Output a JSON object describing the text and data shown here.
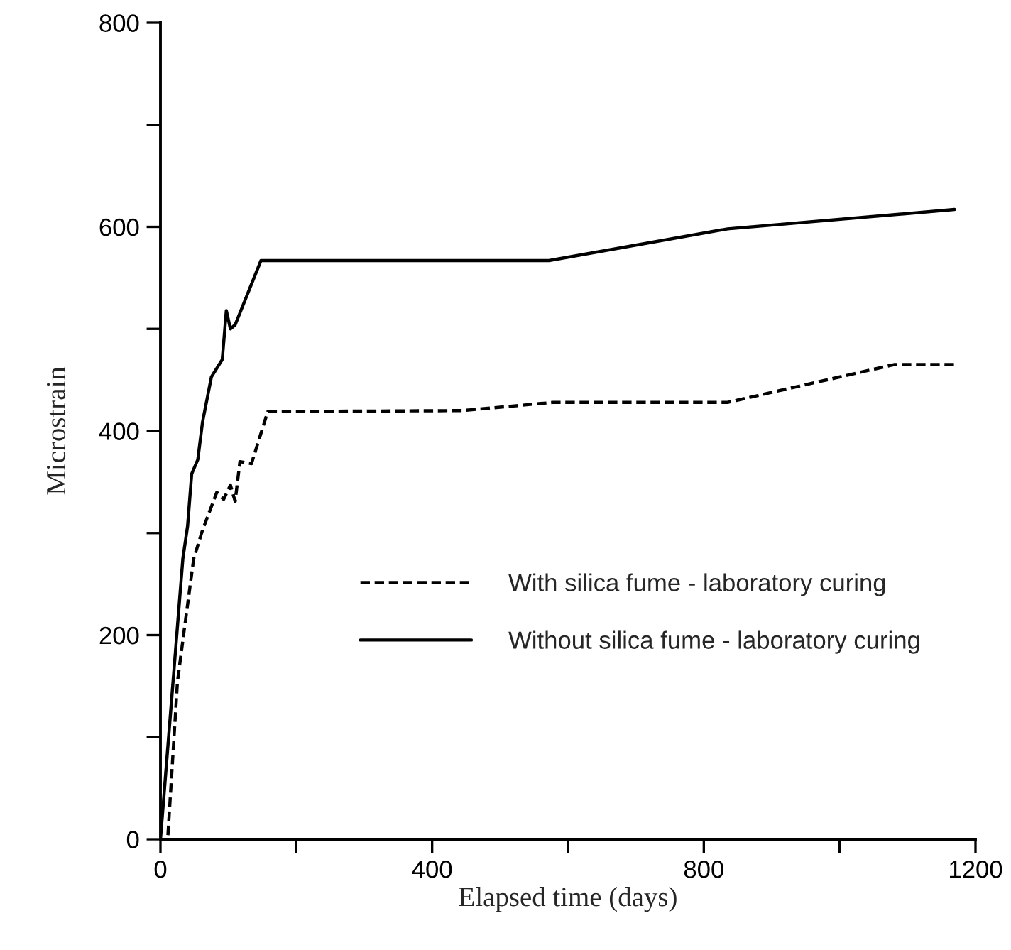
{
  "chart_data": {
    "type": "line",
    "xlabel": "Elapsed time (days)",
    "ylabel": "Microstrain",
    "series": [
      {
        "name": "With silica fume - laboratory curing",
        "color": "#000000",
        "line_style": "dashed",
        "x": [
          11,
          25,
          35,
          49,
          62,
          83,
          93,
          103,
          110,
          117,
          134,
          158,
          445,
          578,
          835,
          1080,
          1169
        ],
        "values": [
          4,
          154,
          205,
          275,
          303,
          340,
          333,
          347,
          331,
          370,
          368,
          419,
          420,
          428,
          428,
          465,
          465
        ]
      },
      {
        "name": "Without silica fume - laboratory curing",
        "color": "#000000",
        "line_style": "solid",
        "x": [
          0,
          33,
          40,
          46,
          55,
          62,
          75,
          91,
          97,
          103,
          110,
          148,
          572,
          835,
          1169
        ],
        "values": [
          0,
          275,
          307,
          358,
          372,
          409,
          453,
          470,
          518,
          500,
          504,
          567,
          567,
          598,
          617
        ]
      }
    ],
    "xlim": [
      0,
      1200
    ],
    "ylim": [
      0,
      800
    ],
    "xticks": [
      0,
      {
        "value": 200,
        "label": null
      },
      400,
      {
        "value": 600,
        "label": null
      },
      800,
      {
        "value": 1000,
        "label": null
      },
      1200
    ],
    "yticks": [
      0,
      {
        "value": 100,
        "label": null
      },
      200,
      {
        "value": 300,
        "label": null
      },
      400,
      {
        "value": 500,
        "label": null
      },
      600,
      {
        "value": 700,
        "label": null
      },
      800
    ],
    "legend": "bottom right",
    "grid": false
  }
}
